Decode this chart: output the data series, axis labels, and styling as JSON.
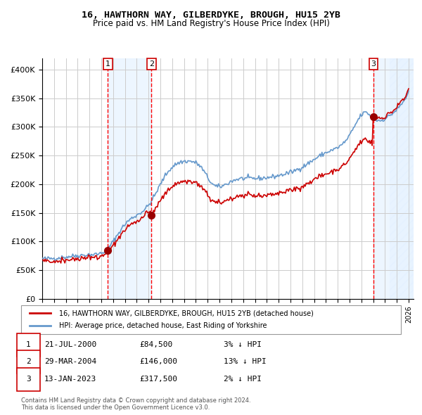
{
  "title": "16, HAWTHORN WAY, GILBERDYKE, BROUGH, HU15 2YB",
  "subtitle": "Price paid vs. HM Land Registry's House Price Index (HPI)",
  "xlabel": "",
  "ylabel": "",
  "ylim": [
    0,
    420000
  ],
  "yticks": [
    0,
    50000,
    100000,
    150000,
    200000,
    250000,
    300000,
    350000,
    400000
  ],
  "ytick_labels": [
    "£0",
    "£50K",
    "£100K",
    "£150K",
    "£200K",
    "£250K",
    "£300K",
    "£350K",
    "£400K"
  ],
  "hpi_color": "#6699cc",
  "price_color": "#cc0000",
  "marker_color": "#990000",
  "sale_dates": [
    "2000-07-21",
    "2004-03-29",
    "2023-01-13"
  ],
  "sale_prices": [
    84500,
    146000,
    317500
  ],
  "sale_labels": [
    "1",
    "2",
    "3"
  ],
  "legend_price_label": "16, HAWTHORN WAY, GILBERDYKE, BROUGH, HU15 2YB (detached house)",
  "legend_hpi_label": "HPI: Average price, detached house, East Riding of Yorkshire",
  "table_rows": [
    [
      "1",
      "21-JUL-2000",
      "£84,500",
      "3% ↓ HPI"
    ],
    [
      "2",
      "29-MAR-2004",
      "£146,000",
      "13% ↓ HPI"
    ],
    [
      "3",
      "13-JAN-2023",
      "£317,500",
      "2% ↓ HPI"
    ]
  ],
  "footer_text": "Contains HM Land Registry data © Crown copyright and database right 2024.\nThis data is licensed under the Open Government Licence v3.0.",
  "background_color": "#ffffff",
  "grid_color": "#cccccc",
  "shade_color": "#ddeeff",
  "hatch_color": "#aabbcc"
}
